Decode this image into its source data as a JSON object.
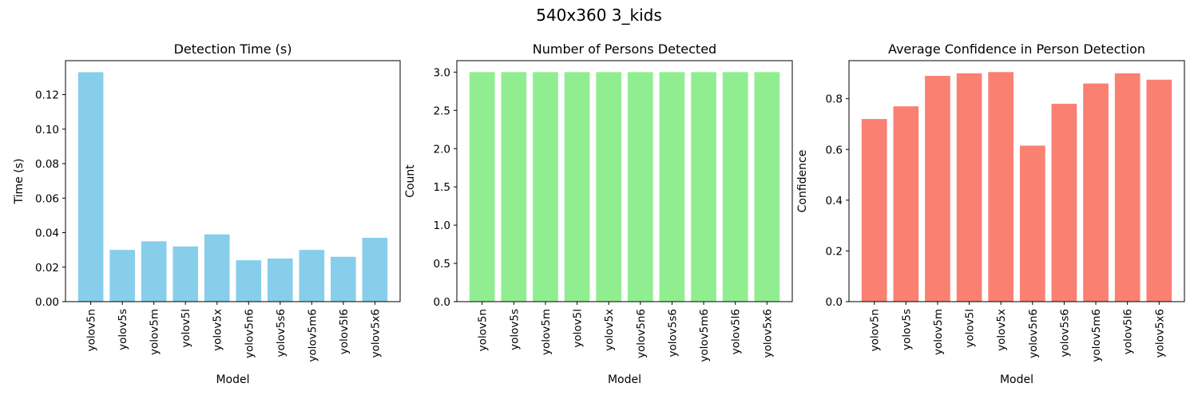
{
  "figure": {
    "suptitle": "540x360 3_kids"
  },
  "chart_data": [
    {
      "type": "bar",
      "title": "Detection Time (s)",
      "xlabel": "Model",
      "ylabel": "Time (s)",
      "categories": [
        "yolov5n",
        "yolov5s",
        "yolov5m",
        "yolov5l",
        "yolov5x",
        "yolov5n6",
        "yolov5s6",
        "yolov5m6",
        "yolov5l6",
        "yolov5x6"
      ],
      "values": [
        0.133,
        0.03,
        0.035,
        0.032,
        0.039,
        0.024,
        0.025,
        0.03,
        0.026,
        0.037
      ],
      "ylim": [
        0,
        0.1397
      ],
      "yticks": [
        0.0,
        0.02,
        0.04,
        0.06,
        0.08,
        0.1,
        0.12
      ],
      "ytick_labels": [
        "0.00",
        "0.02",
        "0.04",
        "0.06",
        "0.08",
        "0.10",
        "0.12"
      ],
      "color": "#87CEEB",
      "grid": false
    },
    {
      "type": "bar",
      "title": "Number of Persons Detected",
      "xlabel": "Model",
      "ylabel": "Count",
      "categories": [
        "yolov5n",
        "yolov5s",
        "yolov5m",
        "yolov5l",
        "yolov5x",
        "yolov5n6",
        "yolov5s6",
        "yolov5m6",
        "yolov5l6",
        "yolov5x6"
      ],
      "values": [
        3,
        3,
        3,
        3,
        3,
        3,
        3,
        3,
        3,
        3
      ],
      "ylim": [
        0,
        3.15
      ],
      "yticks": [
        0.0,
        0.5,
        1.0,
        1.5,
        2.0,
        2.5,
        3.0
      ],
      "ytick_labels": [
        "0.0",
        "0.5",
        "1.0",
        "1.5",
        "2.0",
        "2.5",
        "3.0"
      ],
      "color": "#90EE90",
      "grid": false
    },
    {
      "type": "bar",
      "title": "Average Confidence in Person Detection",
      "xlabel": "Model",
      "ylabel": "Confidence",
      "categories": [
        "yolov5n",
        "yolov5s",
        "yolov5m",
        "yolov5l",
        "yolov5x",
        "yolov5n6",
        "yolov5s6",
        "yolov5m6",
        "yolov5l6",
        "yolov5x6"
      ],
      "values": [
        0.72,
        0.77,
        0.89,
        0.9,
        0.905,
        0.615,
        0.78,
        0.86,
        0.9,
        0.875
      ],
      "ylim": [
        0,
        0.95
      ],
      "yticks": [
        0.0,
        0.2,
        0.4,
        0.6,
        0.8
      ],
      "ytick_labels": [
        "0.0",
        "0.2",
        "0.4",
        "0.6",
        "0.8"
      ],
      "color": "#FA8072",
      "grid": false
    }
  ]
}
